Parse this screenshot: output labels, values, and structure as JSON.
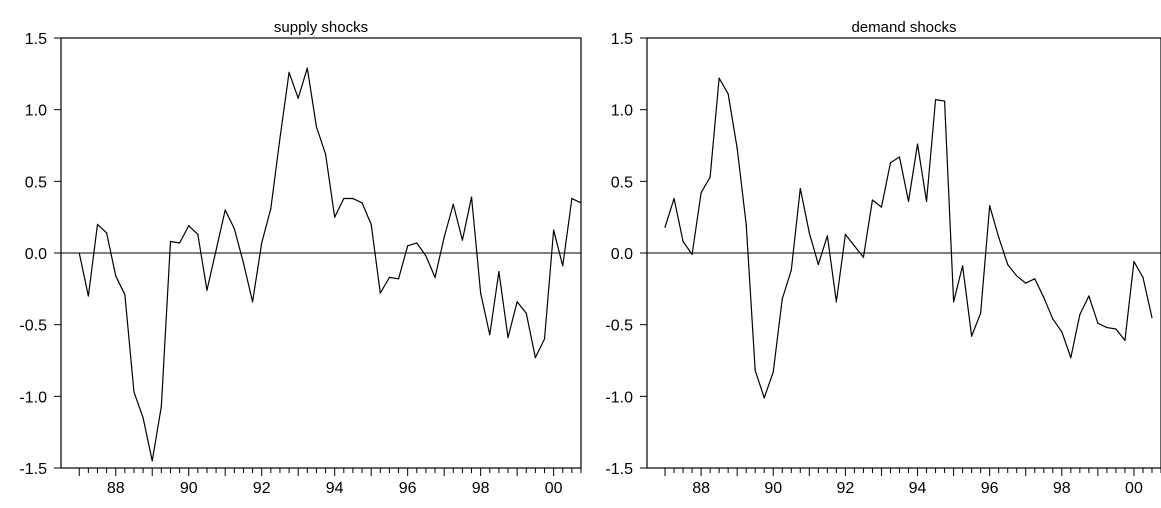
{
  "chart_data": [
    {
      "type": "line",
      "title": "supply shocks",
      "xlabel": "",
      "ylabel": "",
      "xlim": [
        1986.5,
        2000.75
      ],
      "ylim": [
        -1.5,
        1.5
      ],
      "y_ticks": [
        "1.5",
        "1.0",
        "0.5",
        "0.0",
        "-0.5",
        "-1.0",
        "-1.5"
      ],
      "x_ticks": [
        "88",
        "90",
        "92",
        "94",
        "96",
        "98",
        "00"
      ],
      "zero_line": true,
      "grid": false,
      "series": [
        {
          "name": "",
          "color": "#000000",
          "x": [
            1987.0,
            1987.25,
            1987.5,
            1987.75,
            1988.0,
            1988.25,
            1988.5,
            1988.75,
            1989.0,
            1989.25,
            1989.5,
            1989.75,
            1990.0,
            1990.25,
            1990.5,
            1990.75,
            1991.0,
            1991.25,
            1991.5,
            1991.75,
            1992.0,
            1992.25,
            1992.5,
            1992.75,
            1993.0,
            1993.25,
            1993.5,
            1993.75,
            1994.0,
            1994.25,
            1994.5,
            1994.75,
            1995.0,
            1995.25,
            1995.5,
            1995.75,
            1996.0,
            1996.25,
            1996.5,
            1996.75,
            1997.0,
            1997.25,
            1997.5,
            1997.75,
            1998.0,
            1998.25,
            1998.5,
            1998.75,
            1999.0,
            1999.25,
            1999.5,
            1999.75,
            2000.0,
            2000.25,
            2000.5,
            2000.75
          ],
          "y": [
            0.0,
            -0.3,
            0.2,
            0.14,
            -0.16,
            -0.29,
            -0.97,
            -1.15,
            -1.45,
            -1.07,
            0.08,
            0.07,
            0.19,
            0.13,
            -0.26,
            0.02,
            0.3,
            0.17,
            -0.07,
            -0.34,
            0.07,
            0.31,
            0.8,
            1.26,
            1.08,
            1.29,
            0.88,
            0.69,
            0.25,
            0.38,
            0.38,
            0.35,
            0.2,
            -0.28,
            -0.17,
            -0.18,
            0.05,
            0.07,
            -0.02,
            -0.17,
            0.11,
            0.34,
            0.09,
            0.39,
            -0.28,
            -0.57,
            -0.13,
            -0.59,
            -0.34,
            -0.42,
            -0.73,
            -0.6,
            0.16,
            -0.09,
            0.38,
            0.35
          ]
        }
      ]
    },
    {
      "type": "line",
      "title": "demand shocks",
      "xlabel": "",
      "ylabel": "",
      "xlim": [
        1986.5,
        2000.75
      ],
      "ylim": [
        -1.5,
        1.5
      ],
      "y_ticks": [
        "1.5",
        "1.0",
        "0.5",
        "0.0",
        "-0.5",
        "-1.0",
        "-1.5"
      ],
      "x_ticks": [
        "88",
        "90",
        "92",
        "94",
        "96",
        "98",
        "00"
      ],
      "zero_line": true,
      "grid": false,
      "series": [
        {
          "name": "",
          "color": "#000000",
          "x": [
            1987.0,
            1987.25,
            1987.5,
            1987.75,
            1988.0,
            1988.25,
            1988.5,
            1988.75,
            1989.0,
            1989.25,
            1989.5,
            1989.75,
            1990.0,
            1990.25,
            1990.5,
            1990.75,
            1991.0,
            1991.25,
            1991.5,
            1991.75,
            1992.0,
            1992.25,
            1992.5,
            1992.75,
            1993.0,
            1993.25,
            1993.5,
            1993.75,
            1994.0,
            1994.25,
            1994.5,
            1994.75,
            1995.0,
            1995.25,
            1995.5,
            1995.75,
            1996.0,
            1996.25,
            1996.5,
            1996.75,
            1997.0,
            1997.25,
            1997.5,
            1997.75,
            1998.0,
            1998.25,
            1998.5,
            1998.75,
            1999.0,
            1999.25,
            1999.5,
            1999.75,
            2000.0,
            2000.25,
            2000.5
          ],
          "y": [
            0.18,
            0.38,
            0.08,
            -0.01,
            0.42,
            0.53,
            1.22,
            1.11,
            0.73,
            0.2,
            -0.82,
            -1.01,
            -0.83,
            -0.32,
            -0.12,
            0.45,
            0.14,
            -0.08,
            0.12,
            -0.34,
            0.13,
            0.05,
            -0.03,
            0.37,
            0.32,
            0.63,
            0.67,
            0.36,
            0.76,
            0.36,
            1.07,
            1.06,
            -0.34,
            -0.09,
            -0.58,
            -0.42,
            0.33,
            0.11,
            -0.08,
            -0.16,
            -0.21,
            -0.18,
            -0.31,
            -0.46,
            -0.55,
            -0.73,
            -0.43,
            -0.3,
            -0.49,
            -0.52,
            -0.53,
            -0.61,
            -0.06,
            -0.17,
            -0.45
          ]
        }
      ]
    }
  ]
}
